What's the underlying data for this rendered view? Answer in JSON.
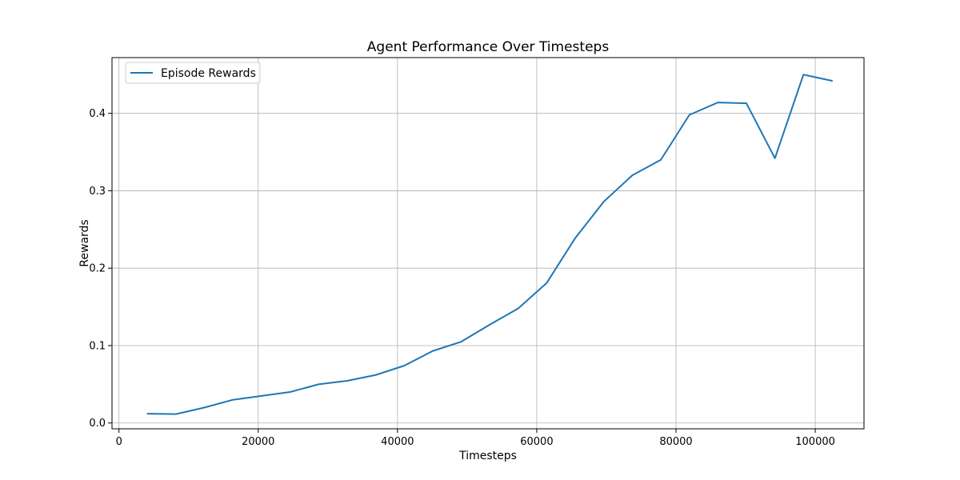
{
  "chart_data": {
    "type": "line",
    "title": "Agent Performance Over Timesteps",
    "xlabel": "Timesteps",
    "ylabel": "Rewards",
    "xlim": [
      -1000,
      107000
    ],
    "ylim": [
      -0.0075,
      0.472
    ],
    "xticks": [
      0,
      20000,
      40000,
      60000,
      80000,
      100000
    ],
    "yticks": [
      0.0,
      0.1,
      0.2,
      0.3,
      0.4
    ],
    "xtick_labels": [
      "0",
      "20000",
      "40000",
      "60000",
      "80000",
      "100000"
    ],
    "ytick_labels": [
      "0.0",
      "0.1",
      "0.2",
      "0.3",
      "0.4"
    ],
    "grid": true,
    "legend_position": "top-left",
    "series": [
      {
        "name": "Episode Rewards",
        "color": "#1f77b4",
        "x": [
          4096,
          8192,
          12288,
          16384,
          20480,
          24576,
          28672,
          32768,
          36864,
          40960,
          45056,
          49152,
          53248,
          57344,
          61440,
          65536,
          69632,
          73728,
          77824,
          81920,
          86016,
          90112,
          94208,
          98304,
          102400
        ],
        "y": [
          0.012,
          0.0115,
          0.02,
          0.03,
          0.035,
          0.04,
          0.05,
          0.0545,
          0.062,
          0.074,
          0.093,
          0.105,
          0.127,
          0.148,
          0.181,
          0.239,
          0.286,
          0.32,
          0.34,
          0.398,
          0.414,
          0.413,
          0.342,
          0.45,
          0.442
        ]
      }
    ]
  }
}
